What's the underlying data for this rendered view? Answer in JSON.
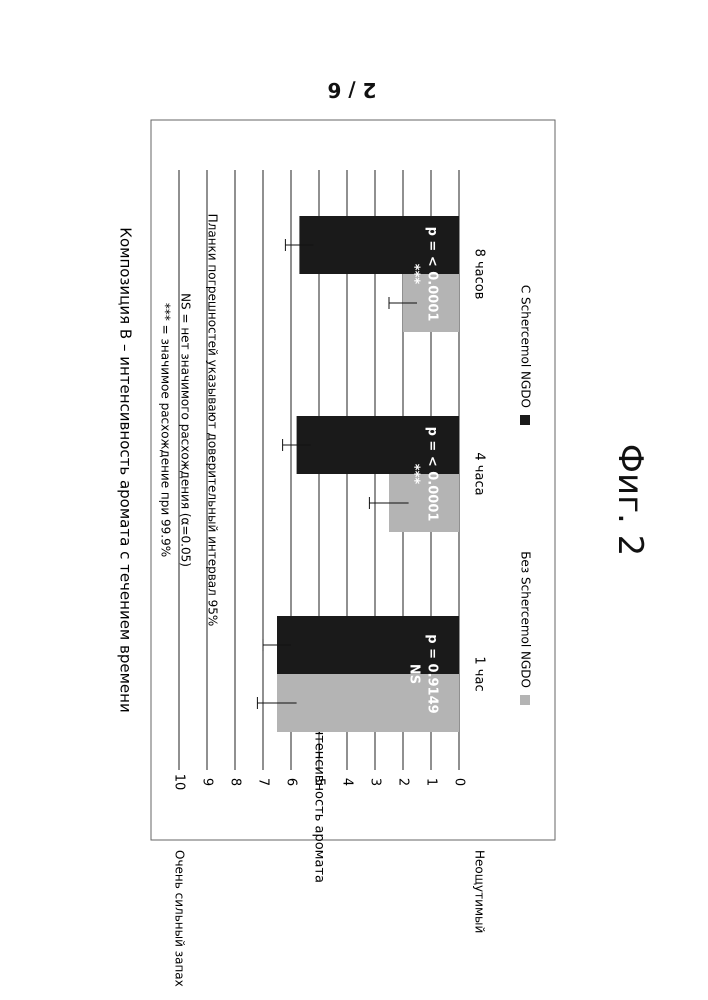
{
  "page_number": "2 / 6",
  "figure_caption": "Фиг. 2",
  "chart_data": {
    "type": "bar",
    "title": "Композиция В – интенсивность аромата с течением времени",
    "ylabel": "Интенсивность аромата",
    "ylim": [
      0,
      10
    ],
    "yticks": [
      "0",
      "1",
      "2",
      "3",
      "4",
      "5",
      "6",
      "7",
      "8",
      "9",
      "10"
    ],
    "ytick_top_label": "Очень сильный запах",
    "ytick_bottom_label": "Неощутимый",
    "categories": [
      "1 час",
      "4 часа",
      "8 часов"
    ],
    "series": [
      {
        "name": "Без Schercemol NGDO",
        "color": "#b4b4b4",
        "values": [
          6.5,
          2.5,
          2.0
        ],
        "errors": [
          0.7,
          0.7,
          0.5
        ]
      },
      {
        "name": "С Schercemol NGDO",
        "color": "#1a1a1a",
        "values": [
          6.5,
          5.8,
          5.7
        ],
        "errors": [
          0.5,
          0.5,
          0.5
        ]
      }
    ],
    "annotations": [
      {
        "category": "1 час",
        "p_text": "p = 0.9149",
        "sig": "NS"
      },
      {
        "category": "4 часа",
        "p_text": "p = < 0.0001",
        "sig": "***"
      },
      {
        "category": "8 часов",
        "p_text": "p = < 0.0001",
        "sig": "***"
      }
    ],
    "notes": [
      "*** = значимое расхождение при 99.9%",
      "NS = нет значимого расхождения (α=0.05)",
      "Планки погрешностей указывают доверительный интервал 95%"
    ],
    "grid": true,
    "legend_position": "bottom"
  }
}
